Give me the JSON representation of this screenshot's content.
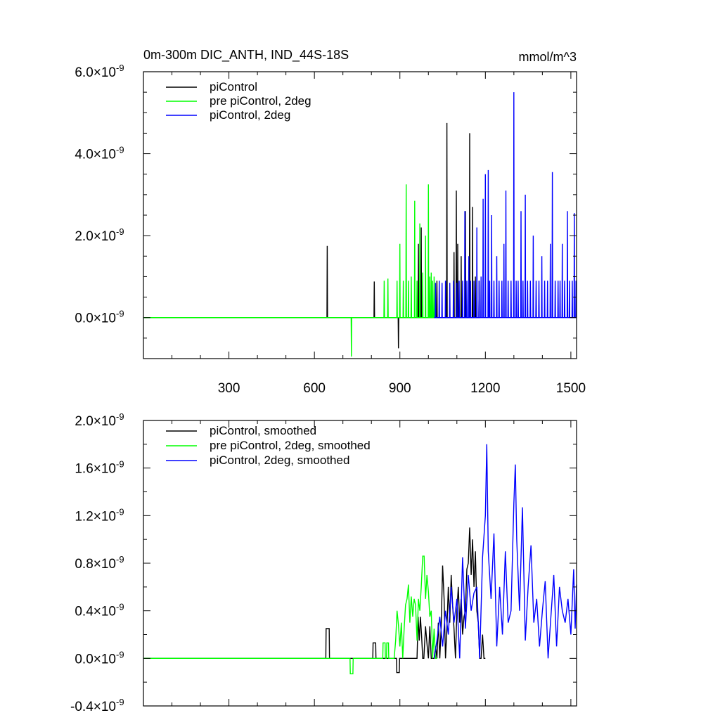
{
  "chart_data": [
    {
      "type": "line",
      "title": "0m-300m DIC_ANTH, IND_44S-18S",
      "units": "mmol/m^3",
      "xlim": [
        0,
        1520
      ],
      "ylim": [
        -1.0,
        6.0
      ],
      "y_unit_suffix": "×10",
      "y_exponent": "-9",
      "x_ticks": [
        300,
        600,
        900,
        1200,
        1500
      ],
      "x_tick_labels": [
        "300",
        "600",
        "900",
        "1200",
        "1500"
      ],
      "y_ticks": [
        0,
        2,
        4,
        6
      ],
      "y_tick_labels": [
        "0.0",
        "2.0",
        "4.0",
        "6.0"
      ],
      "legend": [
        {
          "label": "piControl",
          "color": "#000000"
        },
        {
          "label": "pre piControl, 2deg",
          "color": "#00ff00"
        },
        {
          "label": "piControl, 2deg",
          "color": "#0000ff"
        }
      ],
      "series": [
        {
          "name": "piControl",
          "color": "#000000",
          "baseline_range": [
            0,
            1100
          ],
          "spikes": [
            [
              645,
              1.75
            ],
            [
              810,
              0.88
            ],
            [
              895,
              -0.75
            ],
            [
              965,
              1.8
            ],
            [
              975,
              2.2
            ],
            [
              1030,
              0.9
            ],
            [
              1065,
              4.75
            ],
            [
              1090,
              1.6
            ],
            [
              1098,
              3.1
            ],
            [
              1103,
              1.8
            ],
            [
              1115,
              1.5
            ],
            [
              1130,
              2.6
            ],
            [
              1145,
              4.5
            ],
            [
              1155,
              2.7
            ],
            [
              1165,
              1.0
            ],
            [
              1178,
              0.9
            ]
          ]
        },
        {
          "name": "pre piControl, 2deg",
          "color": "#00ff00",
          "baseline_range": [
            0,
            1030
          ],
          "spikes": [
            [
              730,
              -0.95
            ],
            [
              845,
              0.9
            ],
            [
              858,
              0.95
            ],
            [
              890,
              0.9
            ],
            [
              900,
              1.8
            ],
            [
              912,
              0.9
            ],
            [
              922,
              3.25
            ],
            [
              930,
              0.9
            ],
            [
              940,
              1.0
            ],
            [
              952,
              2.85
            ],
            [
              960,
              0.9
            ],
            [
              970,
              2.3
            ],
            [
              980,
              1.1
            ],
            [
              990,
              2.0
            ],
            [
              1000,
              3.25
            ],
            [
              1005,
              1.0
            ],
            [
              1010,
              1.1
            ],
            [
              1015,
              0.9
            ],
            [
              1020,
              1.0
            ]
          ]
        },
        {
          "name": "piControl, 2deg",
          "color": "#0000ff",
          "baseline_range": [
            1020,
            1520
          ],
          "spikes": [
            [
              1025,
              0.85
            ],
            [
              1038,
              0.9
            ],
            [
              1048,
              0.85
            ],
            [
              1060,
              0.9
            ],
            [
              1075,
              0.85
            ],
            [
              1088,
              0.9
            ],
            [
              1100,
              0.85
            ],
            [
              1108,
              0.9
            ],
            [
              1120,
              0.9
            ],
            [
              1128,
              2.6
            ],
            [
              1135,
              0.9
            ],
            [
              1142,
              1.5
            ],
            [
              1148,
              0.9
            ],
            [
              1160,
              0.9
            ],
            [
              1170,
              2.2
            ],
            [
              1178,
              0.9
            ],
            [
              1185,
              1.0
            ],
            [
              1192,
              2.9
            ],
            [
              1200,
              3.5
            ],
            [
              1210,
              3.6
            ],
            [
              1215,
              0.9
            ],
            [
              1222,
              2.5
            ],
            [
              1230,
              0.9
            ],
            [
              1240,
              1.5
            ],
            [
              1248,
              0.9
            ],
            [
              1258,
              0.9
            ],
            [
              1265,
              1.8
            ],
            [
              1272,
              3.1
            ],
            [
              1280,
              0.9
            ],
            [
              1290,
              0.9
            ],
            [
              1300,
              5.5
            ],
            [
              1308,
              0.9
            ],
            [
              1315,
              0.9
            ],
            [
              1325,
              2.6
            ],
            [
              1332,
              0.9
            ],
            [
              1340,
              3.0
            ],
            [
              1348,
              0.9
            ],
            [
              1358,
              0.9
            ],
            [
              1368,
              2.0
            ],
            [
              1378,
              0.9
            ],
            [
              1388,
              0.9
            ],
            [
              1398,
              1.5
            ],
            [
              1408,
              0.9
            ],
            [
              1418,
              0.9
            ],
            [
              1428,
              1.8
            ],
            [
              1435,
              3.55
            ],
            [
              1445,
              0.9
            ],
            [
              1455,
              0.9
            ],
            [
              1462,
              0.9
            ],
            [
              1470,
              1.8
            ],
            [
              1478,
              0.9
            ],
            [
              1488,
              2.6
            ],
            [
              1495,
              0.9
            ],
            [
              1505,
              0.9
            ],
            [
              1512,
              2.55
            ],
            [
              1518,
              0.9
            ]
          ]
        }
      ]
    },
    {
      "type": "line",
      "title": "",
      "xlim": [
        0,
        1520
      ],
      "ylim": [
        -0.4,
        2.0
      ],
      "y_unit_suffix": "×10",
      "y_exponent": "-9",
      "x_ticks": [
        300,
        600,
        900,
        1200,
        1500
      ],
      "y_ticks": [
        -0.4,
        0.0,
        0.4,
        0.8,
        1.2,
        1.6,
        2.0
      ],
      "y_tick_labels": [
        "-0.4",
        "0.0",
        "0.4",
        "0.8",
        "1.2",
        "1.6",
        "2.0"
      ],
      "legend": [
        {
          "label": "piControl, smoothed",
          "color": "#000000"
        },
        {
          "label": "pre piControl, 2deg, smoothed",
          "color": "#00ff00"
        },
        {
          "label": "piControl, 2deg, smoothed",
          "color": "#0000ff"
        }
      ],
      "series": [
        {
          "name": "piControl, smoothed",
          "color": "#000000",
          "x": [
            0,
            640,
            641,
            652,
            653,
            805,
            806,
            815,
            816,
            888,
            889,
            898,
            899,
            960,
            964,
            968,
            972,
            976,
            980,
            984,
            990,
            996,
            1000,
            1005,
            1010,
            1015,
            1020,
            1025,
            1030,
            1035,
            1040,
            1045,
            1050,
            1055,
            1060,
            1065,
            1070,
            1075,
            1080,
            1085,
            1090,
            1095,
            1100,
            1105,
            1110,
            1115,
            1120,
            1125,
            1130,
            1135,
            1140,
            1145,
            1150,
            1155,
            1160,
            1165,
            1170,
            1175,
            1180,
            1185,
            1190,
            1195,
            1200
          ],
          "values": [
            0,
            0,
            0.25,
            0.25,
            0,
            0,
            0.13,
            0.13,
            0,
            0,
            -0.12,
            -0.12,
            0,
            0,
            0.35,
            0.15,
            0.35,
            0.2,
            0.0,
            0.0,
            0.27,
            0.1,
            0.0,
            0.27,
            0.0,
            0.0,
            0.0,
            0.1,
            0.0,
            0.3,
            0.0,
            0.27,
            0.78,
            0.5,
            0.0,
            0.25,
            0.6,
            0.3,
            0.7,
            0.45,
            0.25,
            0.0,
            0.4,
            0.6,
            0.3,
            0.5,
            0.2,
            0.35,
            0.4,
            0.75,
            0.8,
            1.1,
            0.7,
            1.0,
            0.6,
            0.9,
            0.4,
            0.3,
            0.0,
            0.0,
            0.2,
            0.0,
            0.0
          ]
        },
        {
          "name": "pre piControl, 2deg, smoothed",
          "color": "#00ff00",
          "x": [
            0,
            725,
            726,
            735,
            736,
            840,
            841,
            848,
            849,
            853,
            854,
            860,
            861,
            880,
            885,
            890,
            895,
            900,
            905,
            910,
            915,
            920,
            925,
            930,
            935,
            940,
            945,
            950,
            955,
            960,
            965,
            970,
            975,
            980,
            985,
            990,
            995,
            1000,
            1005,
            1010,
            1015,
            1020,
            1025,
            1030
          ],
          "values": [
            0,
            0,
            -0.13,
            -0.13,
            0,
            0,
            0.13,
            0.13,
            0,
            0,
            0.13,
            0.13,
            0,
            0,
            0.15,
            0.4,
            0.28,
            0.1,
            0.3,
            0.0,
            0.25,
            0.45,
            0.5,
            0.62,
            0.3,
            0.52,
            0.35,
            0.5,
            0.45,
            0.15,
            0.5,
            0.4,
            0.6,
            0.86,
            0.86,
            0.5,
            0.7,
            0.56,
            0.35,
            0.4,
            0.0,
            0.25,
            0.0,
            0.0
          ]
        },
        {
          "name": "piControl, 2deg, smoothed",
          "color": "#0000ff",
          "x": [
            1020,
            1030,
            1040,
            1050,
            1060,
            1070,
            1080,
            1090,
            1100,
            1110,
            1120,
            1130,
            1140,
            1150,
            1160,
            1170,
            1180,
            1190,
            1200,
            1205,
            1210,
            1220,
            1230,
            1240,
            1250,
            1260,
            1270,
            1280,
            1290,
            1300,
            1305,
            1310,
            1320,
            1330,
            1340,
            1350,
            1360,
            1370,
            1380,
            1390,
            1400,
            1410,
            1420,
            1430,
            1440,
            1450,
            1460,
            1470,
            1480,
            1490,
            1500,
            1510,
            1515,
            1520
          ],
          "values": [
            0.0,
            0.15,
            0.35,
            0.1,
            0.4,
            0.2,
            0.6,
            0.3,
            0.5,
            0.0,
            0.85,
            0.25,
            0.7,
            0.4,
            0.55,
            0.6,
            0.0,
            0.85,
            1.2,
            1.8,
            0.9,
            0.5,
            1.05,
            0.1,
            0.6,
            0.2,
            0.9,
            0.3,
            0.4,
            1.3,
            1.63,
            1.0,
            0.4,
            1.27,
            0.15,
            0.6,
            0.95,
            0.3,
            0.5,
            0.1,
            0.4,
            0.65,
            0.0,
            0.35,
            0.7,
            0.1,
            0.6,
            0.4,
            0.3,
            0.5,
            0.2,
            0.75,
            0.25,
            0.62
          ]
        }
      ]
    }
  ]
}
